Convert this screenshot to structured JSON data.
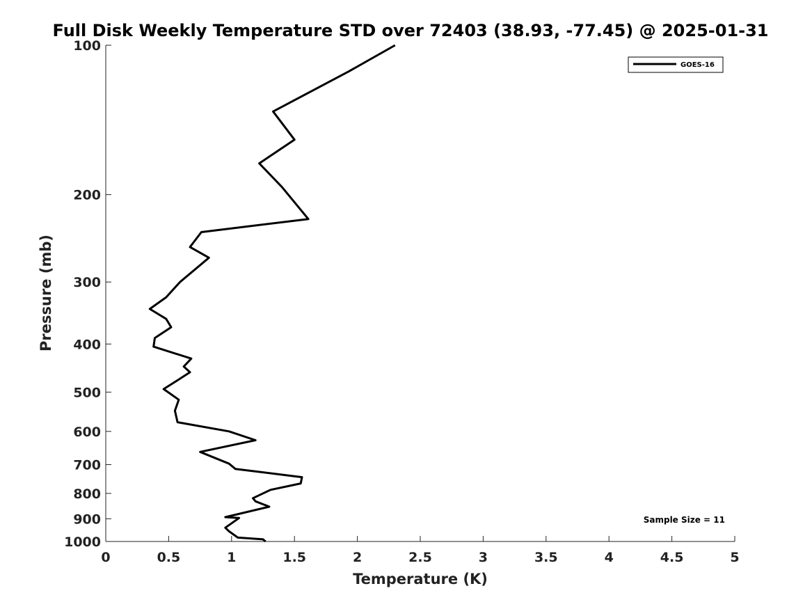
{
  "chart_data": {
    "type": "line",
    "title": "Full Disk Weekly Temperature STD over 72403 (38.93, -77.45) @ 2025-01-31",
    "xlabel": "Temperature (K)",
    "ylabel": "Pressure (mb)",
    "xlim": [
      0,
      5
    ],
    "ylim": [
      100,
      1000
    ],
    "y_scale": "log",
    "y_reversed": true,
    "x_ticks": [
      "0",
      "0.5",
      "1",
      "1.5",
      "2",
      "2.5",
      "3",
      "3.5",
      "4",
      "4.5",
      "5"
    ],
    "y_ticks": [
      "100",
      "200",
      "300",
      "400",
      "500",
      "600",
      "700",
      "800",
      "900",
      "1000"
    ],
    "grid": false,
    "legend": {
      "placement": "top-right",
      "entries": [
        "GOES-16"
      ]
    },
    "annotation": "Sample Size = 11",
    "series": [
      {
        "name": "GOES-16",
        "color": "#000000",
        "x": [
          2.3,
          1.93,
          1.33,
          1.5,
          1.22,
          1.4,
          1.61,
          0.76,
          0.67,
          0.82,
          0.59,
          0.48,
          0.35,
          0.48,
          0.52,
          0.39,
          0.38,
          0.68,
          0.62,
          0.67,
          0.55,
          0.46,
          0.58,
          0.55,
          0.57,
          0.98,
          1.19,
          0.75,
          0.98,
          1.03,
          1.56,
          1.55,
          1.31,
          1.17,
          1.19,
          1.3,
          0.95,
          1.06,
          0.95,
          0.98,
          1.05,
          1.25,
          1.27
        ],
        "y": [
          100,
          113,
          136,
          155,
          173,
          193,
          224,
          238,
          255,
          268,
          300,
          322,
          340,
          356,
          370,
          389,
          405,
          428,
          444,
          456,
          477,
          493,
          518,
          545,
          575,
          600,
          625,
          660,
          697,
          714,
          742,
          764,
          787,
          818,
          830,
          851,
          893,
          897,
          938,
          954,
          982,
          990,
          1000
        ]
      }
    ]
  }
}
